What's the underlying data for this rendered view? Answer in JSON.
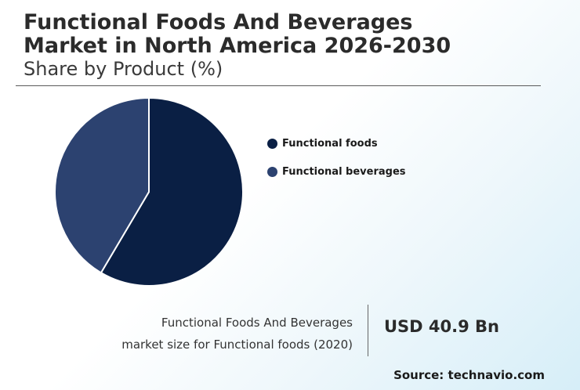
{
  "header": {
    "title_line1": "Functional Foods And Beverages",
    "title_line2": "Market in North America 2026-2030",
    "subtitle": "Share by Product (%)"
  },
  "chart_data": {
    "type": "pie",
    "categories": [
      "Functional foods",
      "Functional beverages"
    ],
    "values": [
      58.5,
      41.5
    ],
    "colors": [
      "#0a1f44",
      "#2c4270"
    ],
    "legend_position": "right"
  },
  "market_size": {
    "description_line1": "Functional Foods And Beverages",
    "description_line2": "market size for Functional foods (2020)",
    "value": "USD 40.9 Bn"
  },
  "source": "Source: technavio.com"
}
